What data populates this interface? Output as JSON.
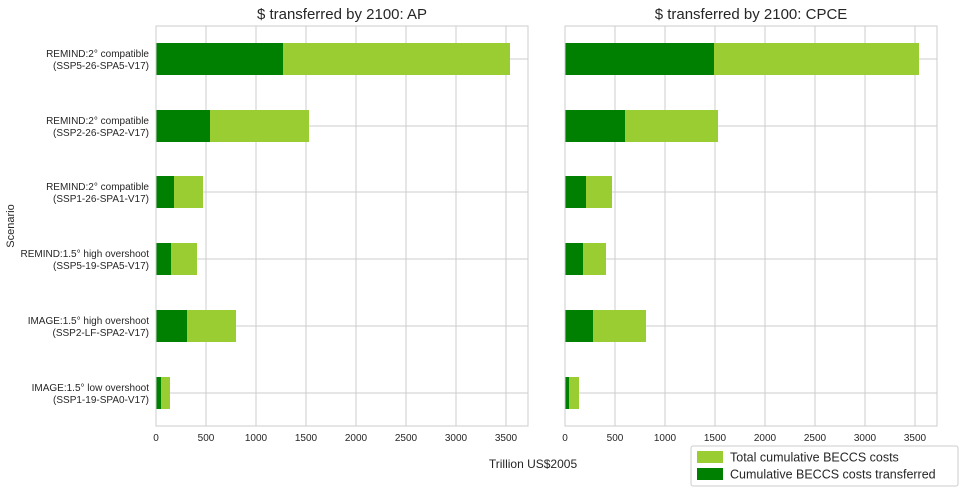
{
  "figure": {
    "ylabel": "Scenario",
    "xlabel": "Trillion US$2005"
  },
  "colors": {
    "total": "#9acd32",
    "transferred": "#008000",
    "grid": "#cccccc",
    "axes_edge": "#cccccc"
  },
  "legend": {
    "location": "bottom-right",
    "items": [
      {
        "label": "Total cumulative BECCS costs",
        "color": "#9acd32"
      },
      {
        "label": "Cumulative BECCS costs transferred",
        "color": "#008000"
      }
    ]
  },
  "chart_data": [
    {
      "type": "bar",
      "orientation": "horizontal",
      "title": "$ transferred by 2100: AP",
      "xlim": [
        0,
        3720
      ],
      "xticks": [
        "0",
        "500",
        "1000",
        "1500",
        "2000",
        "2500",
        "3000",
        "3500"
      ],
      "categories": [
        [
          "REMIND:2° compatible",
          "(SSP5-26-SPA5-V17)"
        ],
        [
          "REMIND:2° compatible",
          "(SSP2-26-SPA2-V17)"
        ],
        [
          "REMIND:2° compatible",
          "(SSP1-26-SPA1-V17)"
        ],
        [
          "REMIND:1.5° high overshoot",
          "(SSP5-19-SPA5-V17)"
        ],
        [
          "IMAGE:1.5° high overshoot",
          "(SSP2-LF-SPA2-V17)"
        ],
        [
          "IMAGE:1.5° low overshoot",
          "(SSP1-19-SPA0-V17)"
        ]
      ],
      "series": [
        {
          "name": "Total cumulative BECCS costs",
          "values": [
            3540,
            1530,
            470,
            410,
            800,
            140
          ]
        },
        {
          "name": "Cumulative BECCS costs transferred",
          "values": [
            1270,
            540,
            180,
            150,
            310,
            50
          ]
        }
      ],
      "grid": true
    },
    {
      "type": "bar",
      "orientation": "horizontal",
      "title": "$ transferred by 2100: CPCE",
      "xlim": [
        0,
        3720
      ],
      "xticks": [
        "0",
        "500",
        "1000",
        "1500",
        "2000",
        "2500",
        "3000",
        "3500"
      ],
      "categories": [
        [
          "REMIND:2° compatible",
          "(SSP5-26-SPA5-V17)"
        ],
        [
          "REMIND:2° compatible",
          "(SSP2-26-SPA2-V17)"
        ],
        [
          "REMIND:2° compatible",
          "(SSP1-26-SPA1-V17)"
        ],
        [
          "REMIND:1.5° high overshoot",
          "(SSP5-19-SPA5-V17)"
        ],
        [
          "IMAGE:1.5° high overshoot",
          "(SSP2-LF-SPA2-V17)"
        ],
        [
          "IMAGE:1.5° low overshoot",
          "(SSP1-19-SPA0-V17)"
        ]
      ],
      "series": [
        {
          "name": "Total cumulative BECCS costs",
          "values": [
            3540,
            1530,
            470,
            410,
            810,
            140
          ]
        },
        {
          "name": "Cumulative BECCS costs transferred",
          "values": [
            1490,
            600,
            210,
            180,
            280,
            40
          ]
        }
      ],
      "grid": true
    }
  ]
}
